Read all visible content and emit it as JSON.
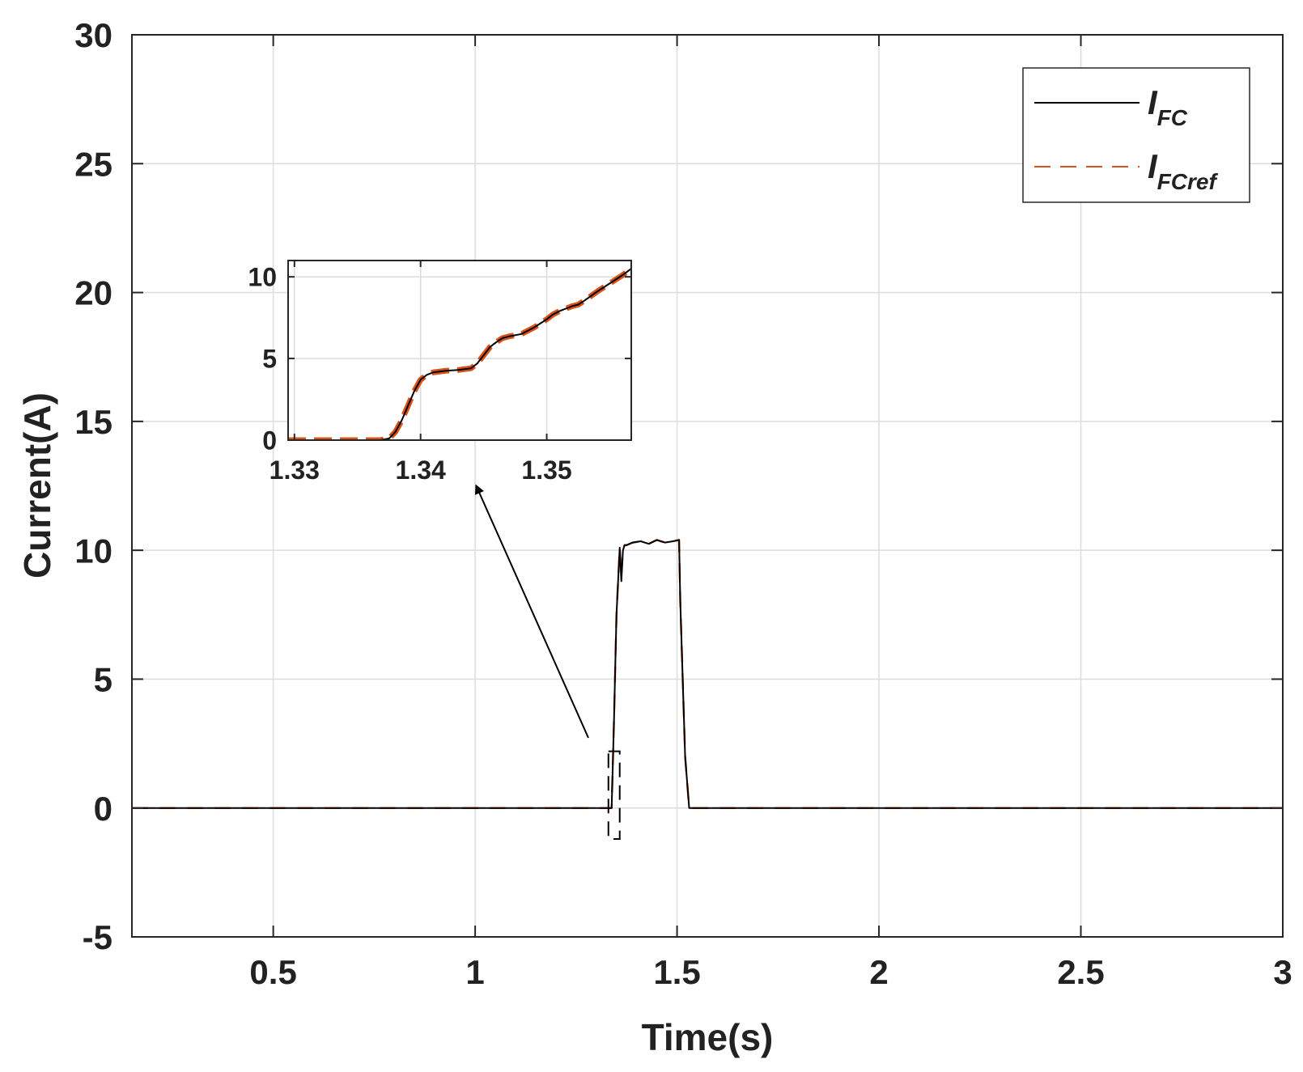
{
  "chart_data": [
    {
      "type": "line",
      "xlabel": "Time(s)",
      "ylabel": "Current(A)",
      "xlim": [
        0.15,
        3.0
      ],
      "ylim": [
        -5,
        30
      ],
      "xticks": [
        0.5,
        1,
        1.5,
        2,
        2.5,
        3
      ],
      "xtick_labels": [
        "0.5",
        "1",
        "1.5",
        "2",
        "2.5",
        "3"
      ],
      "yticks": [
        -5,
        0,
        5,
        10,
        15,
        20,
        25,
        30
      ],
      "ytick_labels": [
        "-5",
        "0",
        "5",
        "10",
        "15",
        "20",
        "25",
        "30"
      ],
      "grid": true,
      "legend": {
        "placement": "top-right"
      },
      "series": [
        {
          "name": "I_FC",
          "name_main": "I",
          "name_sub": "FC",
          "color": "#000000",
          "style": "solid",
          "x": [
            0.15,
            1.33,
            1.338,
            1.344,
            1.35,
            1.358,
            1.362,
            1.366,
            1.37,
            1.375,
            1.39,
            1.41,
            1.43,
            1.45,
            1.47,
            1.49,
            1.505,
            1.508,
            1.52,
            1.53,
            3.0
          ],
          "y": [
            0,
            0,
            0,
            3.5,
            7.5,
            10.1,
            8.8,
            10.0,
            10.2,
            10.2,
            10.3,
            10.35,
            10.25,
            10.4,
            10.3,
            10.35,
            10.4,
            8.0,
            2.0,
            0,
            0
          ]
        },
        {
          "name": "I_FCref",
          "name_main": "I",
          "name_sub": "FCref",
          "color": "#d95319",
          "style": "dashed",
          "x": [
            0.15,
            1.33,
            1.338,
            1.344,
            1.35,
            1.358,
            1.362,
            1.366,
            1.37,
            1.375,
            1.39,
            1.41,
            1.43,
            1.45,
            1.47,
            1.49,
            1.505,
            1.508,
            1.52,
            1.53,
            3.0
          ],
          "y": [
            0,
            0,
            0,
            3.5,
            7.5,
            10.1,
            9.0,
            10.0,
            10.2,
            10.2,
            10.3,
            10.35,
            10.25,
            10.4,
            10.3,
            10.35,
            10.4,
            8.0,
            2.0,
            0,
            0
          ]
        }
      ],
      "zoom_box": {
        "x_range": [
          1.33,
          1.358
        ],
        "y_range": [
          -1.2,
          2.2
        ]
      }
    },
    {
      "type": "line",
      "role": "inset",
      "xlim": [
        1.3295,
        1.3567
      ],
      "ylim": [
        0,
        11
      ],
      "xticks": [
        1.33,
        1.34,
        1.35
      ],
      "xtick_labels": [
        "1.33",
        "1.34",
        "1.35"
      ],
      "yticks": [
        0,
        5,
        10
      ],
      "ytick_labels": [
        "0",
        "5",
        "10"
      ],
      "grid": true,
      "series": [
        {
          "name": "I_FC",
          "color": "#000000",
          "style": "solid",
          "x": [
            1.3295,
            1.3368,
            1.3375,
            1.338,
            1.3385,
            1.339,
            1.3395,
            1.34,
            1.3405,
            1.341,
            1.342,
            1.343,
            1.344,
            1.3445,
            1.345,
            1.3455,
            1.346,
            1.3465,
            1.347,
            1.348,
            1.349,
            1.35,
            1.3505,
            1.351,
            1.352,
            1.3525,
            1.353,
            1.354,
            1.355,
            1.356,
            1.3567
          ],
          "y": [
            0,
            0,
            0.1,
            0.5,
            1.2,
            2.1,
            3.0,
            3.7,
            4.0,
            4.15,
            4.25,
            4.3,
            4.4,
            4.7,
            5.2,
            5.7,
            6.0,
            6.25,
            6.35,
            6.5,
            6.9,
            7.4,
            7.7,
            7.9,
            8.2,
            8.3,
            8.55,
            9.1,
            9.6,
            10.1,
            10.5
          ]
        },
        {
          "name": "I_FCref",
          "color": "#d95319",
          "style": "dashed",
          "x": [
            1.3295,
            1.3368,
            1.3375,
            1.338,
            1.3385,
            1.339,
            1.3395,
            1.34,
            1.3405,
            1.341,
            1.342,
            1.343,
            1.344,
            1.3445,
            1.345,
            1.3455,
            1.346,
            1.3465,
            1.347,
            1.348,
            1.349,
            1.35,
            1.3505,
            1.351,
            1.352,
            1.3525,
            1.353,
            1.354,
            1.355,
            1.356,
            1.3567
          ],
          "y": [
            0,
            0,
            0.1,
            0.5,
            1.2,
            2.1,
            3.0,
            3.7,
            4.0,
            4.15,
            4.25,
            4.3,
            4.4,
            4.7,
            5.2,
            5.7,
            6.0,
            6.25,
            6.35,
            6.5,
            6.9,
            7.4,
            7.7,
            7.9,
            8.2,
            8.3,
            8.55,
            9.1,
            9.6,
            10.1,
            10.5
          ]
        }
      ]
    }
  ]
}
